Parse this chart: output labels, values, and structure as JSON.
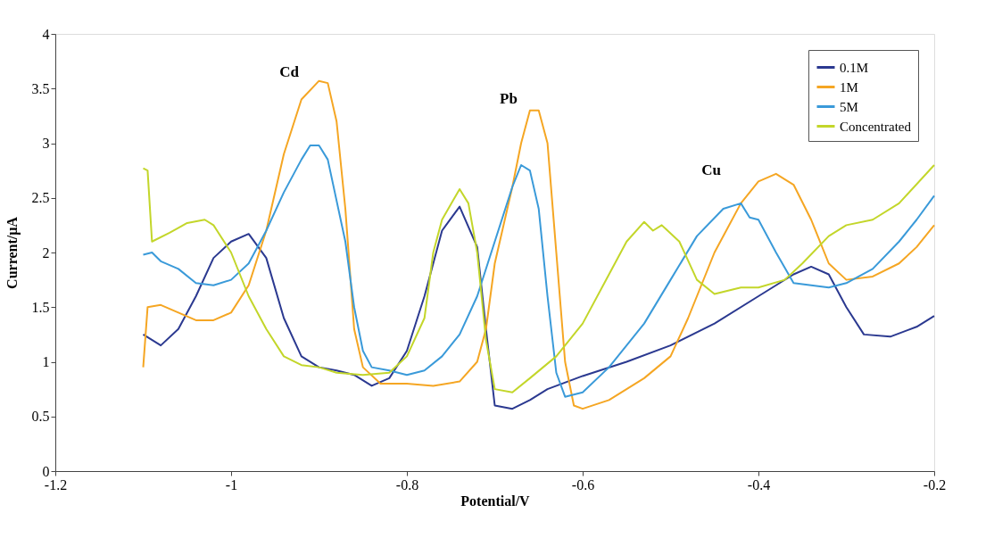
{
  "chart_data": {
    "type": "line",
    "xlabel": "Potential/V",
    "ylabel": "Current/μA",
    "xlim": [
      -1.2,
      -0.2
    ],
    "xticks": [
      -1.2,
      -1,
      -0.8,
      -0.6,
      -0.4,
      -0.2
    ],
    "ylim": [
      0,
      4
    ],
    "yticks": [
      0,
      0.5,
      1,
      1.5,
      2,
      2.5,
      3,
      3.5,
      4
    ],
    "grid": false,
    "legend": "top right",
    "marker": "none",
    "line_style": "solid",
    "annotations": [
      "Cd",
      "Pb",
      "Cu"
    ],
    "series": [
      {
        "name": "0.1M",
        "color": "#2b3990",
        "x": [
          -1.1,
          -1.08,
          -1.06,
          -1.04,
          -1.02,
          -1.0,
          -0.98,
          -0.96,
          -0.94,
          -0.92,
          -0.9,
          -0.88,
          -0.86,
          -0.84,
          -0.82,
          -0.8,
          -0.78,
          -0.76,
          -0.74,
          -0.72,
          -0.71,
          -0.7,
          -0.68,
          -0.66,
          -0.64,
          -0.6,
          -0.55,
          -0.5,
          -0.45,
          -0.4,
          -0.36,
          -0.34,
          -0.32,
          -0.3,
          -0.28,
          -0.25,
          -0.22,
          -0.2
        ],
        "values": [
          1.25,
          1.15,
          1.3,
          1.6,
          1.95,
          2.1,
          2.17,
          1.95,
          1.4,
          1.05,
          0.95,
          0.92,
          0.88,
          0.78,
          0.85,
          1.1,
          1.6,
          2.2,
          2.42,
          2.05,
          1.3,
          0.6,
          0.57,
          0.65,
          0.75,
          0.87,
          1.0,
          1.15,
          1.35,
          1.6,
          1.8,
          1.87,
          1.8,
          1.5,
          1.25,
          1.23,
          1.32,
          1.42
        ]
      },
      {
        "name": "1M",
        "color": "#f5a623",
        "x": [
          -1.1,
          -1.095,
          -1.08,
          -1.06,
          -1.04,
          -1.02,
          -1.0,
          -0.98,
          -0.96,
          -0.94,
          -0.92,
          -0.9,
          -0.89,
          -0.88,
          -0.87,
          -0.86,
          -0.85,
          -0.83,
          -0.8,
          -0.77,
          -0.74,
          -0.72,
          -0.71,
          -0.7,
          -0.68,
          -0.67,
          -0.66,
          -0.65,
          -0.64,
          -0.63,
          -0.62,
          -0.61,
          -0.6,
          -0.57,
          -0.53,
          -0.5,
          -0.48,
          -0.45,
          -0.42,
          -0.4,
          -0.38,
          -0.36,
          -0.34,
          -0.32,
          -0.3,
          -0.27,
          -0.24,
          -0.22,
          -0.2
        ],
        "values": [
          0.95,
          1.5,
          1.52,
          1.45,
          1.38,
          1.38,
          1.45,
          1.7,
          2.2,
          2.9,
          3.4,
          3.57,
          3.55,
          3.2,
          2.4,
          1.3,
          0.95,
          0.8,
          0.8,
          0.78,
          0.82,
          1.0,
          1.3,
          1.9,
          2.6,
          3.0,
          3.3,
          3.3,
          3.0,
          2.0,
          1.0,
          0.6,
          0.57,
          0.65,
          0.85,
          1.05,
          1.4,
          2.0,
          2.45,
          2.65,
          2.72,
          2.62,
          2.3,
          1.9,
          1.75,
          1.78,
          1.9,
          2.05,
          2.25
        ]
      },
      {
        "name": "5M",
        "color": "#3a9ad9",
        "x": [
          -1.1,
          -1.09,
          -1.08,
          -1.06,
          -1.04,
          -1.02,
          -1.0,
          -0.98,
          -0.96,
          -0.94,
          -0.92,
          -0.91,
          -0.9,
          -0.89,
          -0.87,
          -0.86,
          -0.85,
          -0.84,
          -0.82,
          -0.8,
          -0.78,
          -0.76,
          -0.74,
          -0.72,
          -0.7,
          -0.68,
          -0.67,
          -0.66,
          -0.65,
          -0.64,
          -0.63,
          -0.62,
          -0.6,
          -0.57,
          -0.53,
          -0.5,
          -0.47,
          -0.44,
          -0.42,
          -0.41,
          -0.4,
          -0.38,
          -0.36,
          -0.34,
          -0.32,
          -0.3,
          -0.27,
          -0.24,
          -0.22,
          -0.2
        ],
        "values": [
          1.98,
          2.0,
          1.92,
          1.85,
          1.72,
          1.7,
          1.75,
          1.9,
          2.2,
          2.55,
          2.85,
          2.98,
          2.98,
          2.85,
          2.1,
          1.5,
          1.1,
          0.95,
          0.92,
          0.88,
          0.92,
          1.05,
          1.25,
          1.6,
          2.1,
          2.6,
          2.8,
          2.75,
          2.4,
          1.6,
          0.9,
          0.68,
          0.72,
          0.95,
          1.35,
          1.75,
          2.15,
          2.4,
          2.45,
          2.32,
          2.3,
          2.0,
          1.72,
          1.7,
          1.68,
          1.72,
          1.85,
          2.1,
          2.3,
          2.52
        ]
      },
      {
        "name": "Concentrated",
        "color": "#c3d62a",
        "x": [
          -1.1,
          -1.095,
          -1.09,
          -1.07,
          -1.05,
          -1.03,
          -1.02,
          -1.0,
          -0.98,
          -0.96,
          -0.94,
          -0.92,
          -0.9,
          -0.88,
          -0.85,
          -0.82,
          -0.8,
          -0.78,
          -0.77,
          -0.76,
          -0.74,
          -0.73,
          -0.72,
          -0.71,
          -0.7,
          -0.68,
          -0.66,
          -0.63,
          -0.6,
          -0.57,
          -0.55,
          -0.53,
          -0.52,
          -0.51,
          -0.49,
          -0.47,
          -0.45,
          -0.42,
          -0.4,
          -0.37,
          -0.35,
          -0.32,
          -0.3,
          -0.27,
          -0.24,
          -0.2
        ],
        "values": [
          2.77,
          2.75,
          2.1,
          2.18,
          2.27,
          2.3,
          2.25,
          2.0,
          1.6,
          1.3,
          1.05,
          0.97,
          0.95,
          0.9,
          0.88,
          0.9,
          1.05,
          1.4,
          2.0,
          2.3,
          2.58,
          2.45,
          2.0,
          1.2,
          0.75,
          0.72,
          0.85,
          1.05,
          1.35,
          1.8,
          2.1,
          2.28,
          2.2,
          2.25,
          2.1,
          1.75,
          1.62,
          1.68,
          1.68,
          1.75,
          1.9,
          2.15,
          2.25,
          2.3,
          2.45,
          2.8
        ]
      }
    ]
  }
}
